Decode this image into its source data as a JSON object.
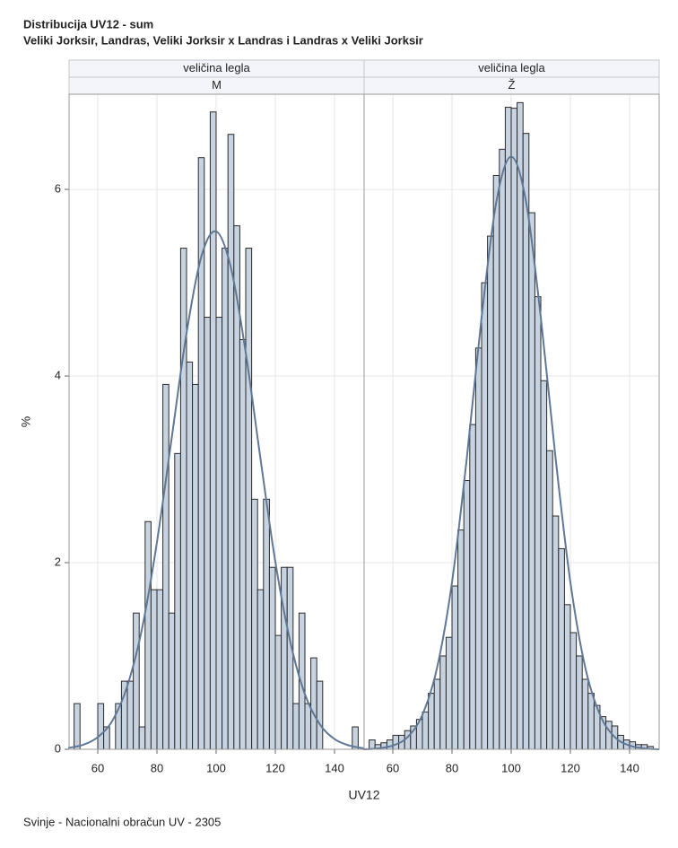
{
  "title": "Distribucija UV12 - sum",
  "subtitle": "Veliki Jorksir, Landras, Veliki Jorksir x Landras i Landras x Veliki Jorksir",
  "xlabel": "UV12",
  "ylabel": "%",
  "footnote": "Svinje - Nacionalni obračun UV - 2305",
  "chart_data": [
    {
      "type": "histogram",
      "panel_header": "veličina legla",
      "panel_label": "M",
      "bins": [
        52,
        54,
        56,
        58,
        60,
        62,
        64,
        66,
        68,
        70,
        72,
        74,
        76,
        78,
        80,
        82,
        84,
        86,
        88,
        90,
        92,
        94,
        96,
        98,
        100,
        102,
        104,
        106,
        108,
        110,
        112,
        114,
        116,
        118,
        120,
        122,
        124,
        126,
        128,
        130,
        132,
        134,
        136,
        138,
        140,
        142,
        144,
        146,
        148
      ],
      "values": [
        0.49,
        0,
        0,
        0,
        0.49,
        0.24,
        0,
        0.49,
        0.73,
        0.73,
        1.46,
        0.24,
        2.44,
        1.71,
        1.71,
        3.91,
        1.46,
        3.17,
        5.37,
        4.15,
        3.91,
        6.34,
        4.63,
        6.83,
        4.63,
        5.37,
        6.59,
        5.61,
        4.39,
        5.37,
        2.68,
        1.71,
        2.68,
        1.95,
        1.22,
        1.95,
        1.95,
        0.49,
        1.46,
        0.49,
        0.98,
        0.73,
        0,
        0,
        0,
        0,
        0,
        0.24
      ],
      "color": "#c8d3e1",
      "density": {
        "x": [
          50,
          55,
          60,
          65,
          70,
          75,
          80,
          85,
          90,
          95,
          100,
          105,
          110,
          115,
          120,
          125,
          130,
          135,
          140,
          145,
          150
        ],
        "values": [
          0.015,
          0.047,
          0.13,
          0.31,
          0.68,
          1.3,
          2.22,
          3.34,
          4.46,
          5.28,
          5.55,
          5.16,
          4.25,
          3.11,
          2.01,
          1.16,
          0.59,
          0.27,
          0.11,
          0.04,
          0.01
        ],
        "color": "#5f7896"
      },
      "xlim": [
        50.3,
        150
      ],
      "ylim": [
        0,
        7.02
      ],
      "xticks": [
        60,
        80,
        100,
        120,
        140
      ],
      "yticks": [
        0,
        2,
        4,
        6
      ],
      "grid": true
    },
    {
      "type": "histogram",
      "panel_header": "veličina legla",
      "panel_label": "Ž",
      "bins": [
        52,
        54,
        56,
        58,
        60,
        62,
        64,
        66,
        68,
        70,
        72,
        74,
        76,
        78,
        80,
        82,
        84,
        86,
        88,
        90,
        92,
        94,
        96,
        98,
        100,
        102,
        104,
        106,
        108,
        110,
        112,
        114,
        116,
        118,
        120,
        122,
        124,
        126,
        128,
        130,
        132,
        134,
        136,
        138,
        140,
        142,
        144,
        146,
        148
      ],
      "values": [
        0.1,
        0.05,
        0.07,
        0.1,
        0.15,
        0.15,
        0.2,
        0.25,
        0.32,
        0.4,
        0.6,
        0.75,
        1.0,
        1.2,
        1.75,
        2.35,
        2.88,
        3.48,
        4.3,
        5.0,
        5.5,
        6.15,
        6.43,
        6.88,
        6.87,
        6.93,
        6.6,
        5.75,
        4.85,
        3.95,
        3.2,
        2.5,
        2.15,
        1.55,
        1.25,
        1.0,
        0.75,
        0.6,
        0.47,
        0.35,
        0.3,
        0.25,
        0.15,
        0.1,
        0.08,
        0.05,
        0.05,
        0.03
      ],
      "color": "#c8d3e1",
      "density": {
        "x": [
          50,
          55,
          60,
          65,
          70,
          75,
          80,
          85,
          90,
          95,
          100,
          105,
          110,
          115,
          120,
          125,
          130,
          135,
          140,
          145,
          150
        ],
        "values": [
          0,
          0.01,
          0.04,
          0.13,
          0.37,
          0.88,
          1.79,
          3.12,
          4.63,
          5.87,
          6.35,
          5.87,
          4.63,
          3.12,
          1.79,
          0.88,
          0.37,
          0.13,
          0.04,
          0.01,
          0
        ],
        "color": "#5f7896"
      },
      "xlim": [
        50.3,
        150
      ],
      "ylim": [
        0,
        7.02
      ],
      "xticks": [
        60,
        80,
        100,
        120,
        140
      ],
      "yticks": [
        0,
        2,
        4,
        6
      ],
      "grid": true
    }
  ]
}
